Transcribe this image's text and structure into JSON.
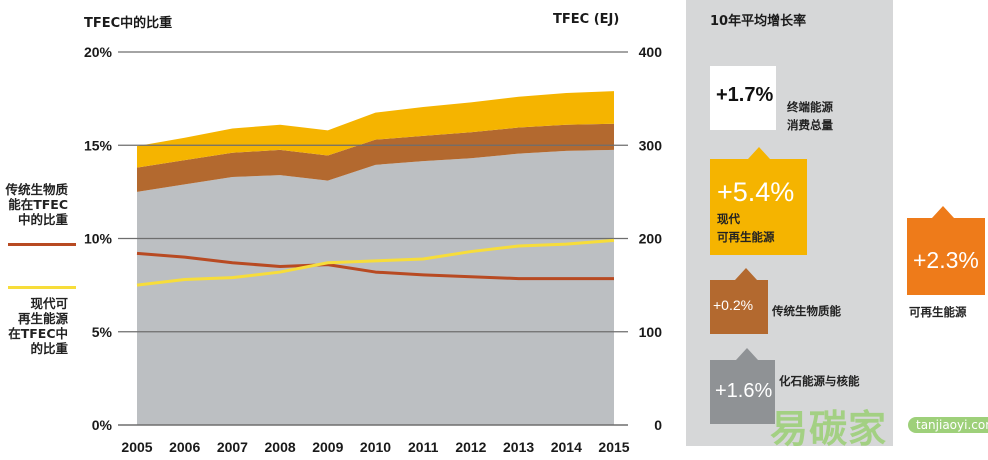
{
  "axes": {
    "left_title": "TFEC中的比重",
    "right_title": "TFEC (EJ)"
  },
  "legend": {
    "traditional": "传统生物质\n能在TFEC\n中的比重",
    "modern": "现代可\n再生能源\n在TFEC中\n的比重"
  },
  "colors": {
    "fossil": "#bcbfc2",
    "traditional": "#b3692f",
    "modern": "#f5b400",
    "traditional_line": "#b84a22",
    "modern_line": "#f7dd3a",
    "grid": "#6e6e6e"
  },
  "chart_data": {
    "type": "area",
    "x": [
      2005,
      2006,
      2007,
      2008,
      2009,
      2010,
      2011,
      2012,
      2013,
      2014,
      2015
    ],
    "x_tick_labels": [
      "2005",
      "2006",
      "2007",
      "2008",
      "2009",
      "2010",
      "2011",
      "2012",
      "2013",
      "2014",
      "2015"
    ],
    "left_axis": {
      "ylim": [
        0,
        20
      ],
      "ticks": [
        "0%",
        "5%",
        "10%",
        "15%",
        "20%"
      ],
      "tick_values": [
        0,
        5,
        10,
        15,
        20
      ]
    },
    "right_axis": {
      "ylim": [
        0,
        400
      ],
      "ticks": [
        "0",
        "100",
        "200",
        "300",
        "400"
      ],
      "tick_values": [
        0,
        100,
        200,
        300,
        400
      ]
    },
    "grid": true,
    "stacked_series_right_axis": [
      {
        "name": "化石能源与核能",
        "values": [
          250,
          258,
          266,
          268,
          262,
          279,
          283,
          286,
          291,
          294,
          295
        ]
      },
      {
        "name": "传统生物质能",
        "values": [
          26,
          26,
          26,
          27,
          27,
          27,
          27,
          28,
          28,
          28,
          28
        ]
      },
      {
        "name": "现代可再生能源",
        "values": [
          23,
          24,
          26,
          27,
          27,
          29,
          31,
          32,
          33,
          34,
          35
        ]
      }
    ],
    "line_series_left_axis": [
      {
        "name": "传统生物质能在TFEC中的比重",
        "values": [
          9.2,
          9.0,
          8.7,
          8.5,
          8.6,
          8.2,
          8.05,
          7.95,
          7.85,
          7.85,
          7.85
        ]
      },
      {
        "name": "现代可再生能源在TFEC中的比重",
        "values": [
          7.5,
          7.8,
          7.9,
          8.2,
          8.7,
          8.8,
          8.9,
          9.3,
          9.6,
          9.7,
          9.9
        ]
      }
    ]
  },
  "growth_panel": {
    "title": "10年平均增长率",
    "items": [
      {
        "value": "+1.7%",
        "label": "终端能源\n消费总量",
        "color": "#ffffff",
        "text_color": "#111111"
      },
      {
        "value": "+5.4%",
        "label": "现代\n可再生能源",
        "color": "#f5b400",
        "text_color": "#ffffff"
      },
      {
        "value": "+0.2%",
        "label": "传统生物质能",
        "color": "#b3692f",
        "text_color": "#ffffff"
      },
      {
        "value": "+1.6%",
        "label": "化石能源与核能",
        "color": "#8f9295",
        "text_color": "#ffffff"
      }
    ],
    "total": {
      "value": "+2.3%",
      "label": "可再生能源",
      "color": "#ee7b1a"
    }
  },
  "watermark": {
    "text": "易碳家",
    "sub": "tanjiaoyi.com"
  }
}
